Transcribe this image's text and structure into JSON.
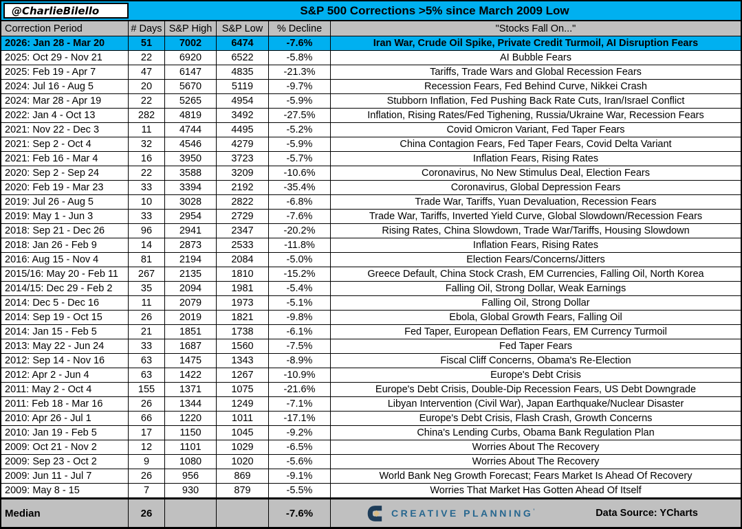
{
  "credit": "@CharlieBilello",
  "chart_data": {
    "type": "table",
    "title": "S&P 500 Corrections >5% since March 2009 Low",
    "columns": [
      "Correction Period",
      "# Days",
      "S&P High",
      "S&P Low",
      "% Decline",
      "\"Stocks Fall On...\""
    ],
    "rows": [
      {
        "period": "2026: Jan 28 - Mar 20",
        "days": 51,
        "high": 7002,
        "low": 6474,
        "decline": "-7.6%",
        "reason": "Iran War, Crude Oil Spike, Private Credit Turmoil, AI Disruption Fears",
        "highlight": true
      },
      {
        "period": "2025: Oct 29 - Nov 21",
        "days": 22,
        "high": 6920,
        "low": 6522,
        "decline": "-5.8%",
        "reason": "AI Bubble Fears",
        "highlight": false
      },
      {
        "period": "2025: Feb 19 - Apr 7",
        "days": 47,
        "high": 6147,
        "low": 4835,
        "decline": "-21.3%",
        "reason": "Tariffs, Trade Wars and Global Recession Fears",
        "highlight": false
      },
      {
        "period": "2024: Jul 16 - Aug 5",
        "days": 20,
        "high": 5670,
        "low": 5119,
        "decline": "-9.7%",
        "reason": "Recession Fears, Fed Behind Curve, Nikkei Crash",
        "highlight": false
      },
      {
        "period": "2024: Mar 28 - Apr 19",
        "days": 22,
        "high": 5265,
        "low": 4954,
        "decline": "-5.9%",
        "reason": "Stubborn Inflation, Fed Pushing Back Rate Cuts, Iran/Israel Conflict",
        "highlight": false
      },
      {
        "period": "2022: Jan 4 - Oct 13",
        "days": 282,
        "high": 4819,
        "low": 3492,
        "decline": "-27.5%",
        "reason": "Inflation, Rising Rates/Fed Tighening, Russia/Ukraine War, Recession Fears",
        "highlight": false
      },
      {
        "period": "2021: Nov 22 - Dec 3",
        "days": 11,
        "high": 4744,
        "low": 4495,
        "decline": "-5.2%",
        "reason": "Covid Omicron Variant, Fed Taper Fears",
        "highlight": false
      },
      {
        "period": "2021: Sep 2 - Oct 4",
        "days": 32,
        "high": 4546,
        "low": 4279,
        "decline": "-5.9%",
        "reason": "China Contagion Fears, Fed Taper Fears, Covid Delta Variant",
        "highlight": false
      },
      {
        "period": "2021: Feb 16 - Mar 4",
        "days": 16,
        "high": 3950,
        "low": 3723,
        "decline": "-5.7%",
        "reason": "Inflation Fears, Rising Rates",
        "highlight": false
      },
      {
        "period": "2020: Sep 2 - Sep 24",
        "days": 22,
        "high": 3588,
        "low": 3209,
        "decline": "-10.6%",
        "reason": "Coronavirus, No New Stimulus Deal, Election Fears",
        "highlight": false
      },
      {
        "period": "2020: Feb 19 - Mar 23",
        "days": 33,
        "high": 3394,
        "low": 2192,
        "decline": "-35.4%",
        "reason": "Coronavirus, Global Depression Fears",
        "highlight": false
      },
      {
        "period": "2019: Jul 26 - Aug 5",
        "days": 10,
        "high": 3028,
        "low": 2822,
        "decline": "-6.8%",
        "reason": "Trade War, Tariffs, Yuan Devaluation, Recession Fears",
        "highlight": false
      },
      {
        "period": "2019: May 1 - Jun 3",
        "days": 33,
        "high": 2954,
        "low": 2729,
        "decline": "-7.6%",
        "reason": "Trade War, Tariffs, Inverted Yield Curve, Global Slowdown/Recession Fears",
        "highlight": false
      },
      {
        "period": "2018: Sep 21 - Dec 26",
        "days": 96,
        "high": 2941,
        "low": 2347,
        "decline": "-20.2%",
        "reason": "Rising Rates, China Slowdown, Trade War/Tariffs, Housing Slowdown",
        "highlight": false
      },
      {
        "period": "2018: Jan 26 - Feb 9",
        "days": 14,
        "high": 2873,
        "low": 2533,
        "decline": "-11.8%",
        "reason": "Inflation Fears, Rising Rates",
        "highlight": false
      },
      {
        "period": "2016: Aug 15 - Nov 4",
        "days": 81,
        "high": 2194,
        "low": 2084,
        "decline": "-5.0%",
        "reason": "Election Fears/Concerns/Jitters",
        "highlight": false
      },
      {
        "period": "2015/16: May 20 - Feb 11",
        "days": 267,
        "high": 2135,
        "low": 1810,
        "decline": "-15.2%",
        "reason": "Greece Default, China Stock Crash, EM Currencies, Falling Oil, North Korea",
        "highlight": false
      },
      {
        "period": "2014/15: Dec 29 - Feb 2",
        "days": 35,
        "high": 2094,
        "low": 1981,
        "decline": "-5.4%",
        "reason": "Falling Oil, Strong Dollar, Weak Earnings",
        "highlight": false
      },
      {
        "period": "2014: Dec 5 - Dec 16",
        "days": 11,
        "high": 2079,
        "low": 1973,
        "decline": "-5.1%",
        "reason": "Falling Oil, Strong Dollar",
        "highlight": false
      },
      {
        "period": "2014: Sep 19 - Oct 15",
        "days": 26,
        "high": 2019,
        "low": 1821,
        "decline": "-9.8%",
        "reason": "Ebola, Global Growth Fears, Falling Oil",
        "highlight": false
      },
      {
        "period": "2014: Jan 15 - Feb 5",
        "days": 21,
        "high": 1851,
        "low": 1738,
        "decline": "-6.1%",
        "reason": "Fed Taper, European Deflation Fears, EM Currency Turmoil",
        "highlight": false
      },
      {
        "period": "2013: May 22 - Jun 24",
        "days": 33,
        "high": 1687,
        "low": 1560,
        "decline": "-7.5%",
        "reason": "Fed Taper Fears",
        "highlight": false
      },
      {
        "period": "2012: Sep 14 - Nov 16",
        "days": 63,
        "high": 1475,
        "low": 1343,
        "decline": "-8.9%",
        "reason": "Fiscal Cliff Concerns, Obama's Re-Election",
        "highlight": false
      },
      {
        "period": "2012: Apr 2 - Jun 4",
        "days": 63,
        "high": 1422,
        "low": 1267,
        "decline": "-10.9%",
        "reason": "Europe's Debt Crisis",
        "highlight": false
      },
      {
        "period": "2011: May 2 - Oct 4",
        "days": 155,
        "high": 1371,
        "low": 1075,
        "decline": "-21.6%",
        "reason": "Europe's Debt Crisis, Double-Dip Recession Fears, US Debt Downgrade",
        "highlight": false
      },
      {
        "period": "2011: Feb 18 - Mar 16",
        "days": 26,
        "high": 1344,
        "low": 1249,
        "decline": "-7.1%",
        "reason": "Libyan Intervention (Civil War), Japan Earthquake/Nuclear Disaster",
        "highlight": false
      },
      {
        "period": "2010: Apr 26 - Jul 1",
        "days": 66,
        "high": 1220,
        "low": 1011,
        "decline": "-17.1%",
        "reason": "Europe's Debt Crisis, Flash Crash, Growth Concerns",
        "highlight": false
      },
      {
        "period": "2010: Jan 19 - Feb 5",
        "days": 17,
        "high": 1150,
        "low": 1045,
        "decline": "-9.2%",
        "reason": "China's Lending Curbs, Obama Bank Regulation Plan",
        "highlight": false
      },
      {
        "period": "2009: Oct 21 - Nov 2",
        "days": 12,
        "high": 1101,
        "low": 1029,
        "decline": "-6.5%",
        "reason": "Worries About The Recovery",
        "highlight": false
      },
      {
        "period": "2009: Sep 23 - Oct 2",
        "days": 9,
        "high": 1080,
        "low": 1020,
        "decline": "-5.6%",
        "reason": "Worries About The Recovery",
        "highlight": false
      },
      {
        "period": "2009: Jun 11 - Jul 7",
        "days": 26,
        "high": 956,
        "low": 869,
        "decline": "-9.1%",
        "reason": "World Bank Neg Growth Forecast; Fears Market Is Ahead Of Recovery",
        "highlight": false
      },
      {
        "period": "2009: May 8 - 15",
        "days": 7,
        "high": 930,
        "low": 879,
        "decline": "-5.5%",
        "reason": "Worries That Market Has Gotten Ahead Of Itself",
        "highlight": false
      }
    ],
    "median": {
      "label": "Median",
      "days": "26",
      "high": "",
      "low": "",
      "decline": "-7.6%"
    }
  },
  "footer": {
    "logo_text": "CREATIVE PLANNING",
    "logo_mark": "’",
    "data_source": "Data Source: YCharts"
  },
  "colors": {
    "accent_cyan": "#00B0F0",
    "header_gray": "#C0C0C0",
    "logo_navy": "#1E3D59",
    "logo_gold": "#D9BC86",
    "logo_blue": "#27678F"
  }
}
